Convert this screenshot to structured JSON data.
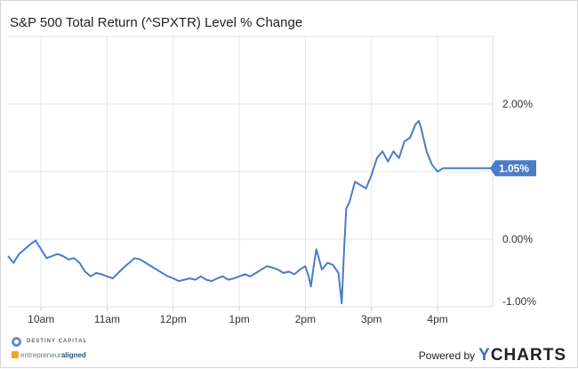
{
  "chart_data": {
    "type": "line",
    "title": "S&P 500 Total Return (^SPXTR) Level % Change",
    "x_ticks": [
      "10am",
      "11am",
      "12pm",
      "1pm",
      "2pm",
      "3pm",
      "4pm"
    ],
    "y_ticks": [
      "2.00%",
      "0.00%",
      "-1.00%"
    ],
    "ylim": [
      -1.0,
      3.0
    ],
    "xlim": [
      "9:30",
      "16:50"
    ],
    "grid": true,
    "last_value_label": "1.05%",
    "line_color": "#4a7cc9",
    "series": [
      {
        "x": [
          "9:30",
          "9:35",
          "9:40",
          "9:45",
          "9:50",
          "9:55",
          "10:00",
          "10:05",
          "10:10",
          "10:15",
          "10:20",
          "10:25",
          "10:30",
          "10:35",
          "10:40",
          "10:45",
          "10:50",
          "10:55",
          "11:00",
          "11:05",
          "11:10",
          "11:15",
          "11:20",
          "11:25",
          "11:30",
          "11:35",
          "11:40",
          "11:45",
          "11:50",
          "11:55",
          "12:00",
          "12:05",
          "12:10",
          "12:15",
          "12:20",
          "12:25",
          "12:30",
          "12:35",
          "12:40",
          "12:45",
          "12:50",
          "12:55",
          "13:00",
          "13:05",
          "13:10",
          "13:15",
          "13:20",
          "13:25",
          "13:30",
          "13:35",
          "13:40",
          "13:45",
          "13:50",
          "13:55",
          "14:00",
          "14:03",
          "14:05",
          "14:08",
          "14:10",
          "14:15",
          "14:20",
          "14:25",
          "14:30",
          "14:33",
          "14:35",
          "14:37",
          "14:40",
          "14:45",
          "14:50",
          "14:55",
          "15:00",
          "15:05",
          "15:10",
          "15:15",
          "15:20",
          "15:25",
          "15:30",
          "15:35",
          "15:40",
          "15:43",
          "15:45",
          "15:50",
          "15:55",
          "16:00",
          "16:05",
          "16:10",
          "16:50"
        ],
        "y": [
          -0.25,
          -0.35,
          -0.22,
          -0.15,
          -0.08,
          -0.02,
          -0.15,
          -0.28,
          -0.25,
          -0.22,
          -0.25,
          -0.3,
          -0.28,
          -0.35,
          -0.48,
          -0.55,
          -0.5,
          -0.52,
          -0.55,
          -0.58,
          -0.5,
          -0.42,
          -0.35,
          -0.28,
          -0.3,
          -0.35,
          -0.4,
          -0.45,
          -0.5,
          -0.55,
          -0.58,
          -0.62,
          -0.6,
          -0.58,
          -0.6,
          -0.55,
          -0.6,
          -0.62,
          -0.58,
          -0.55,
          -0.6,
          -0.58,
          -0.55,
          -0.52,
          -0.55,
          -0.5,
          -0.45,
          -0.4,
          -0.42,
          -0.45,
          -0.5,
          -0.48,
          -0.52,
          -0.45,
          -0.4,
          -0.55,
          -0.7,
          -0.35,
          -0.15,
          -0.45,
          -0.35,
          -0.38,
          -0.5,
          -0.95,
          -0.2,
          0.45,
          0.55,
          0.85,
          0.8,
          0.75,
          0.95,
          1.2,
          1.3,
          1.15,
          1.3,
          1.2,
          1.45,
          1.5,
          1.7,
          1.75,
          1.65,
          1.3,
          1.1,
          1.0,
          1.05,
          1.05,
          1.05
        ]
      }
    ]
  },
  "footer": {
    "brand1": "DESTINY CAPITAL",
    "brand2_a": "entrepreneur",
    "brand2_b": "aligned",
    "powered_by": "Powered by",
    "ycharts_y": "Y",
    "ycharts_rest": "CHARTS"
  }
}
